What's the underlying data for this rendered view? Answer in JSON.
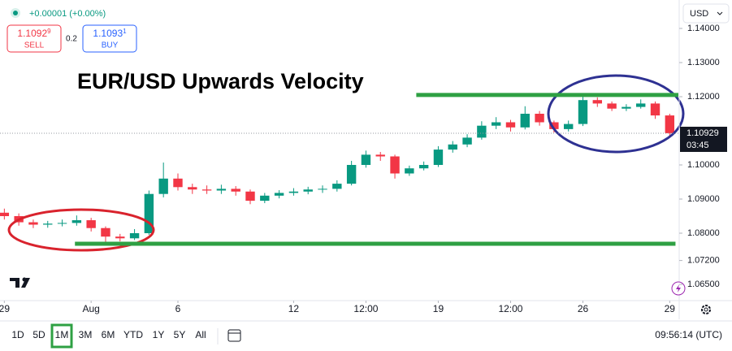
{
  "header": {
    "change": "+0.00001 (+0.00%)",
    "sell": {
      "price": "1.1092",
      "pip": "9",
      "label": "SELL"
    },
    "spread": "0.2",
    "buy": {
      "price": "1.1093",
      "pip": "1",
      "label": "BUY"
    },
    "currency": "USD"
  },
  "chart_data": {
    "type": "candlestick",
    "title": "EUR/USD Upwards Velocity",
    "x": [
      0,
      0.5,
      1,
      1.5,
      2,
      2.5,
      3,
      3.5,
      4,
      4.5,
      5,
      5.5,
      6,
      6.5,
      7,
      7.5,
      8,
      8.5,
      9,
      9.5,
      10,
      10.5,
      11,
      11.5,
      12,
      12.5,
      13,
      13.5,
      14,
      14.5,
      15,
      15.5,
      16,
      16.5,
      17,
      17.5,
      18,
      18.5,
      19,
      19.5,
      20,
      20.5,
      21,
      21.5,
      22,
      22.5,
      23
    ],
    "open": [
      1.086,
      1.085,
      1.0832,
      1.0825,
      1.0828,
      1.083,
      1.0838,
      1.0815,
      1.079,
      1.0785,
      1.08,
      1.0915,
      1.096,
      1.0935,
      1.0928,
      1.0925,
      1.093,
      1.0922,
      1.0895,
      1.091,
      1.0918,
      1.0922,
      1.0928,
      1.093,
      1.0945,
      1.1,
      1.103,
      1.1025,
      1.0975,
      1.099,
      1.1,
      1.1045,
      1.106,
      1.108,
      1.1115,
      1.1125,
      1.111,
      1.115,
      1.1125,
      1.1105,
      1.112,
      1.119,
      1.118,
      1.1165,
      1.117,
      1.118,
      1.1145
    ],
    "high": [
      1.0872,
      1.0858,
      1.084,
      1.0836,
      1.084,
      1.0852,
      1.0845,
      1.082,
      1.0798,
      1.0812,
      1.0925,
      1.1007,
      1.0975,
      1.0945,
      1.094,
      1.0942,
      1.0938,
      1.0928,
      1.0918,
      1.0926,
      1.0932,
      1.0936,
      1.094,
      1.0955,
      1.1012,
      1.1042,
      1.1038,
      1.103,
      1.0998,
      1.101,
      1.1055,
      1.107,
      1.109,
      1.1128,
      1.114,
      1.1132,
      1.1172,
      1.1158,
      1.113,
      1.113,
      1.1202,
      1.1198,
      1.1186,
      1.1178,
      1.1192,
      1.1186,
      1.115
    ],
    "low": [
      1.084,
      1.0822,
      1.0815,
      1.0816,
      1.082,
      1.0822,
      1.0805,
      1.0775,
      1.0776,
      1.078,
      1.0795,
      1.0905,
      1.0925,
      1.0915,
      1.0915,
      1.0915,
      1.091,
      1.0885,
      1.0888,
      1.0902,
      1.091,
      1.0914,
      1.0918,
      1.0922,
      1.094,
      1.0992,
      1.1012,
      1.096,
      1.0968,
      1.0984,
      1.0994,
      1.1036,
      1.1052,
      1.1074,
      1.1105,
      1.1098,
      1.1104,
      1.1115,
      1.1095,
      1.1098,
      1.1114,
      1.117,
      1.1158,
      1.1158,
      1.1165,
      1.1135,
      1.1085
    ],
    "close": [
      1.085,
      1.0832,
      1.0825,
      1.0828,
      1.083,
      1.0838,
      1.0815,
      1.079,
      1.0785,
      1.08,
      1.0915,
      1.096,
      1.0935,
      1.0928,
      1.0925,
      1.093,
      1.0922,
      1.0895,
      1.091,
      1.0918,
      1.0922,
      1.0928,
      1.093,
      1.0945,
      1.1,
      1.103,
      1.1025,
      1.0975,
      1.099,
      1.1,
      1.1045,
      1.106,
      1.108,
      1.1115,
      1.1125,
      1.111,
      1.115,
      1.1125,
      1.1105,
      1.112,
      1.119,
      1.118,
      1.1165,
      1.117,
      1.118,
      1.1145,
      1.1093
    ],
    "up_color": "#089981",
    "down_color": "#f23645",
    "xlim": [
      -0.15,
      23.3
    ],
    "xticks": [
      {
        "value": 0,
        "label": "29"
      },
      {
        "value": 3,
        "label": "Aug"
      },
      {
        "value": 6,
        "label": "6"
      },
      {
        "value": 10,
        "label": "12"
      },
      {
        "value": 12.5,
        "label": "12:00"
      },
      {
        "value": 15,
        "label": "19"
      },
      {
        "value": 17.5,
        "label": "12:00"
      },
      {
        "value": 20,
        "label": "26"
      },
      {
        "value": 23,
        "label": "29"
      }
    ],
    "ylim": [
      1.06024,
      1.14833
    ],
    "yticks": [
      {
        "value": 1.14,
        "label": "1.14000"
      },
      {
        "value": 1.13,
        "label": "1.13000"
      },
      {
        "value": 1.12,
        "label": "1.12000"
      },
      {
        "value": 1.1,
        "label": "1.10000"
      },
      {
        "value": 1.09,
        "label": "1.09000"
      },
      {
        "value": 1.08,
        "label": "1.08000"
      },
      {
        "value": 1.072,
        "label": "1.07200"
      },
      {
        "value": 1.065,
        "label": "1.06500"
      }
    ],
    "last_price": 1.10929,
    "countdown": "03:45",
    "levels": [
      {
        "value": 1.1205,
        "from": 14.24,
        "to": 23.3,
        "color": "#2ea043"
      },
      {
        "value": 1.0769,
        "from": 2.44,
        "to": 23.2,
        "color": "#2ea043"
      }
    ]
  },
  "toolbar": {
    "ranges": [
      "1D",
      "5D",
      "1M",
      "3M",
      "6M",
      "YTD",
      "1Y",
      "5Y",
      "All"
    ],
    "active": 2,
    "clock": "09:56:14 (UTC)"
  }
}
